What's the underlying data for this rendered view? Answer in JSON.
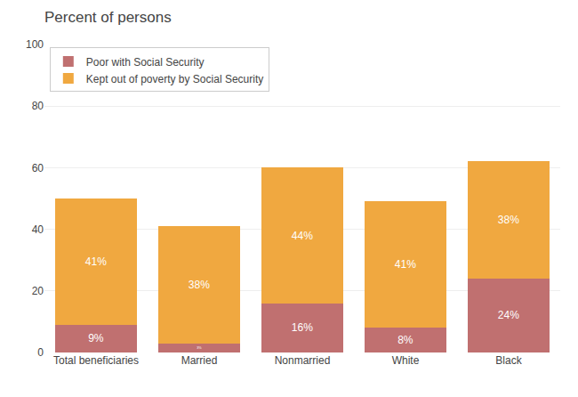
{
  "chart_data": {
    "type": "bar",
    "stacked": true,
    "title": "Percent of persons",
    "categories": [
      "Total beneficiaries",
      "Married",
      "Nonmarried",
      "White",
      "Black"
    ],
    "series": [
      {
        "name": "Poor with Social Security",
        "color": "#c07070",
        "values": [
          9,
          3,
          16,
          8,
          24
        ],
        "value_labels": [
          "9%",
          "3%",
          "16%",
          "8%",
          "24%"
        ]
      },
      {
        "name": "Kept out of poverty by Social Security",
        "color": "#f0a840",
        "values": [
          41,
          38,
          44,
          41,
          38
        ],
        "value_labels": [
          "41%",
          "38%",
          "44%",
          "41%",
          "38%"
        ]
      }
    ],
    "ylim": [
      0,
      100
    ],
    "yticks": [
      0,
      20,
      40,
      60,
      80,
      100
    ],
    "grid": true,
    "legend": "upper left",
    "data_labels": true
  }
}
